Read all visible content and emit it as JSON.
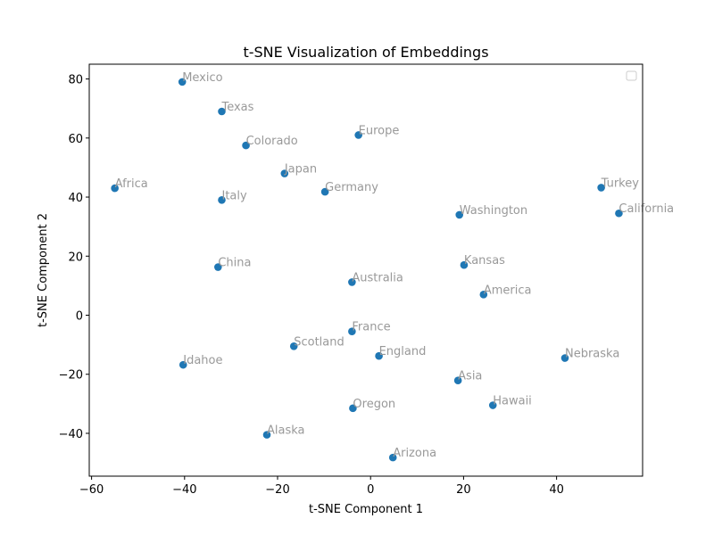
{
  "chart_data": {
    "type": "scatter",
    "title": "t-SNE Visualization of Embeddings",
    "xlabel": "t-SNE Component 1",
    "ylabel": "t-SNE Component 2",
    "xlim": [
      -60.5,
      58.5
    ],
    "ylim": [
      -54.5,
      85
    ],
    "xticks": [
      -60,
      -40,
      -20,
      0,
      20,
      40
    ],
    "yticks": [
      -40,
      -20,
      0,
      20,
      40,
      60,
      80
    ],
    "xtick_labels": [
      "−60",
      "−40",
      "−20",
      "0",
      "20",
      "40"
    ],
    "ytick_labels": [
      "−40",
      "−20",
      "0",
      "20",
      "40",
      "60",
      "80"
    ],
    "grid": false,
    "legend": "upper-right (empty)",
    "point_color": "#1f77b4",
    "label_color": "#999999",
    "points": [
      {
        "label": "Mexico",
        "x": -40.5,
        "y": 79
      },
      {
        "label": "Texas",
        "x": -32,
        "y": 69
      },
      {
        "label": "Europe",
        "x": -2.6,
        "y": 61
      },
      {
        "label": "Colorado",
        "x": -26.8,
        "y": 57.5
      },
      {
        "label": "Japan",
        "x": -18.5,
        "y": 48
      },
      {
        "label": "Africa",
        "x": -55,
        "y": 43
      },
      {
        "label": "Germany",
        "x": -9.8,
        "y": 41.8
      },
      {
        "label": "Italy",
        "x": -32,
        "y": 39
      },
      {
        "label": "Turkey",
        "x": 49.6,
        "y": 43.2
      },
      {
        "label": "California",
        "x": 53.4,
        "y": 34.5
      },
      {
        "label": "Washington",
        "x": 19.1,
        "y": 34
      },
      {
        "label": "China",
        "x": -32.8,
        "y": 16.3
      },
      {
        "label": "Kansas",
        "x": 20.1,
        "y": 17
      },
      {
        "label": "Australia",
        "x": -4,
        "y": 11.2
      },
      {
        "label": "America",
        "x": 24.3,
        "y": 7
      },
      {
        "label": "France",
        "x": -4,
        "y": -5.5
      },
      {
        "label": "Scotland",
        "x": -16.5,
        "y": -10.5
      },
      {
        "label": "England",
        "x": 1.8,
        "y": -13.8
      },
      {
        "label": "Nebraska",
        "x": 41.8,
        "y": -14.5
      },
      {
        "label": "Idahoe",
        "x": -40.3,
        "y": -16.8
      },
      {
        "label": "Asia",
        "x": 18.8,
        "y": -22.1
      },
      {
        "label": "Hawaii",
        "x": 26.3,
        "y": -30.5
      },
      {
        "label": "Oregon",
        "x": -3.8,
        "y": -31.5
      },
      {
        "label": "Alaska",
        "x": -22.3,
        "y": -40.5
      },
      {
        "label": "Arizona",
        "x": 4.8,
        "y": -48.2
      }
    ]
  }
}
